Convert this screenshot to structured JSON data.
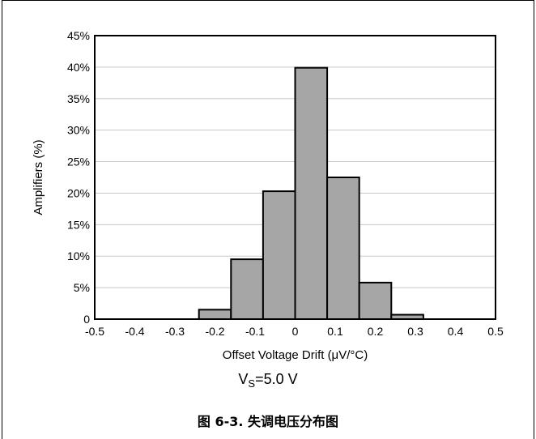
{
  "chart_data": {
    "type": "bar",
    "xlabel": "Offset Voltage Drift (μV/°C)",
    "ylabel": "Amplifiers (%)",
    "xlim": [
      -0.5,
      0.5
    ],
    "ylim": [
      0,
      45
    ],
    "x_ticks": [
      "-0.5",
      "-0.4",
      "-0.3",
      "-0.2",
      "-0.1",
      "0",
      "0.1",
      "0.2",
      "0.3",
      "0.4",
      "0.5"
    ],
    "y_ticks": [
      "0",
      "5%",
      "10%",
      "15%",
      "20%",
      "25%",
      "30%",
      "35%",
      "40%",
      "45%"
    ],
    "bin_edges": [
      -0.24,
      -0.16,
      -0.08,
      0.0,
      0.08,
      0.16,
      0.24,
      0.32
    ],
    "values": [
      1.5,
      9.5,
      20.3,
      39.9,
      22.5,
      5.8,
      0.7
    ],
    "grid": "horizontal",
    "bar_color": "#a6a6a6"
  },
  "condition": {
    "prefix": "V",
    "sub": "S",
    "suffix": "=5.0 V"
  },
  "caption": "图 6-3. 失调电压分布图"
}
